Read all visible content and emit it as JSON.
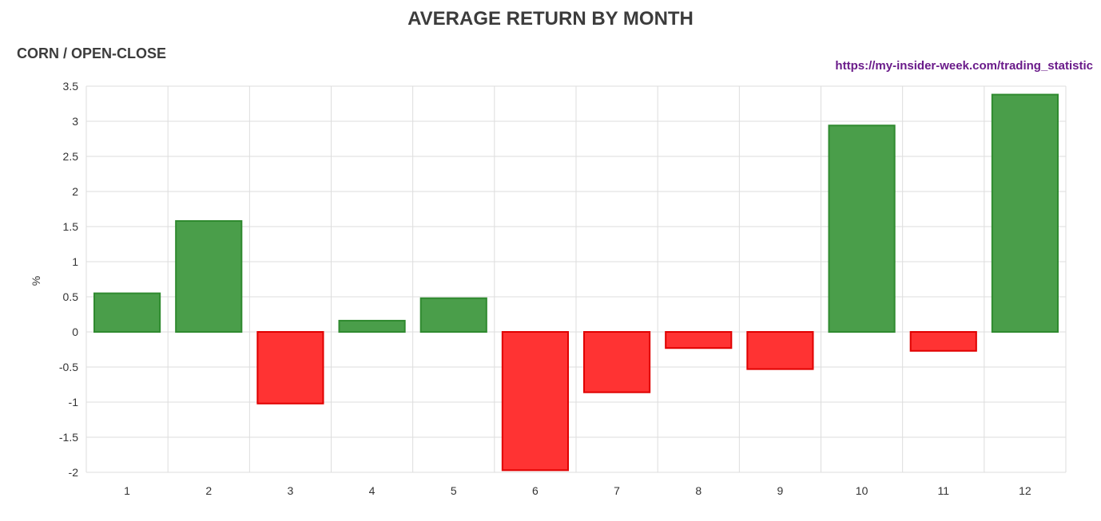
{
  "header": {
    "title": "AVERAGE RETURN BY MONTH",
    "subtitle": "CORN / OPEN-CLOSE",
    "source": "https://my-insider-week.com/trading_statistic"
  },
  "colors": {
    "positive_fill": "#4a9e4a",
    "positive_stroke": "#2f8a2f",
    "negative_fill": "#ff3333",
    "negative_stroke": "#e00000",
    "grid": "#dddddd",
    "source_link": "#6a1b8a"
  },
  "chart_data": {
    "type": "bar",
    "title": "AVERAGE RETURN BY MONTH",
    "subtitle": "CORN / OPEN-CLOSE",
    "xlabel": "",
    "ylabel": "%",
    "categories": [
      "1",
      "2",
      "3",
      "4",
      "5",
      "6",
      "7",
      "8",
      "9",
      "10",
      "11",
      "12"
    ],
    "values": [
      0.55,
      1.58,
      -1.02,
      0.16,
      0.48,
      -1.97,
      -0.86,
      -0.23,
      -0.53,
      2.94,
      -0.27,
      3.38
    ],
    "ylim": [
      -2,
      3.5
    ],
    "yticks": [
      "3.5",
      "3",
      "2.5",
      "2",
      "1.5",
      "1",
      "0.5",
      "0",
      "-0.5",
      "-1",
      "-1.5",
      "-2"
    ],
    "grid": true,
    "legend": "none"
  }
}
